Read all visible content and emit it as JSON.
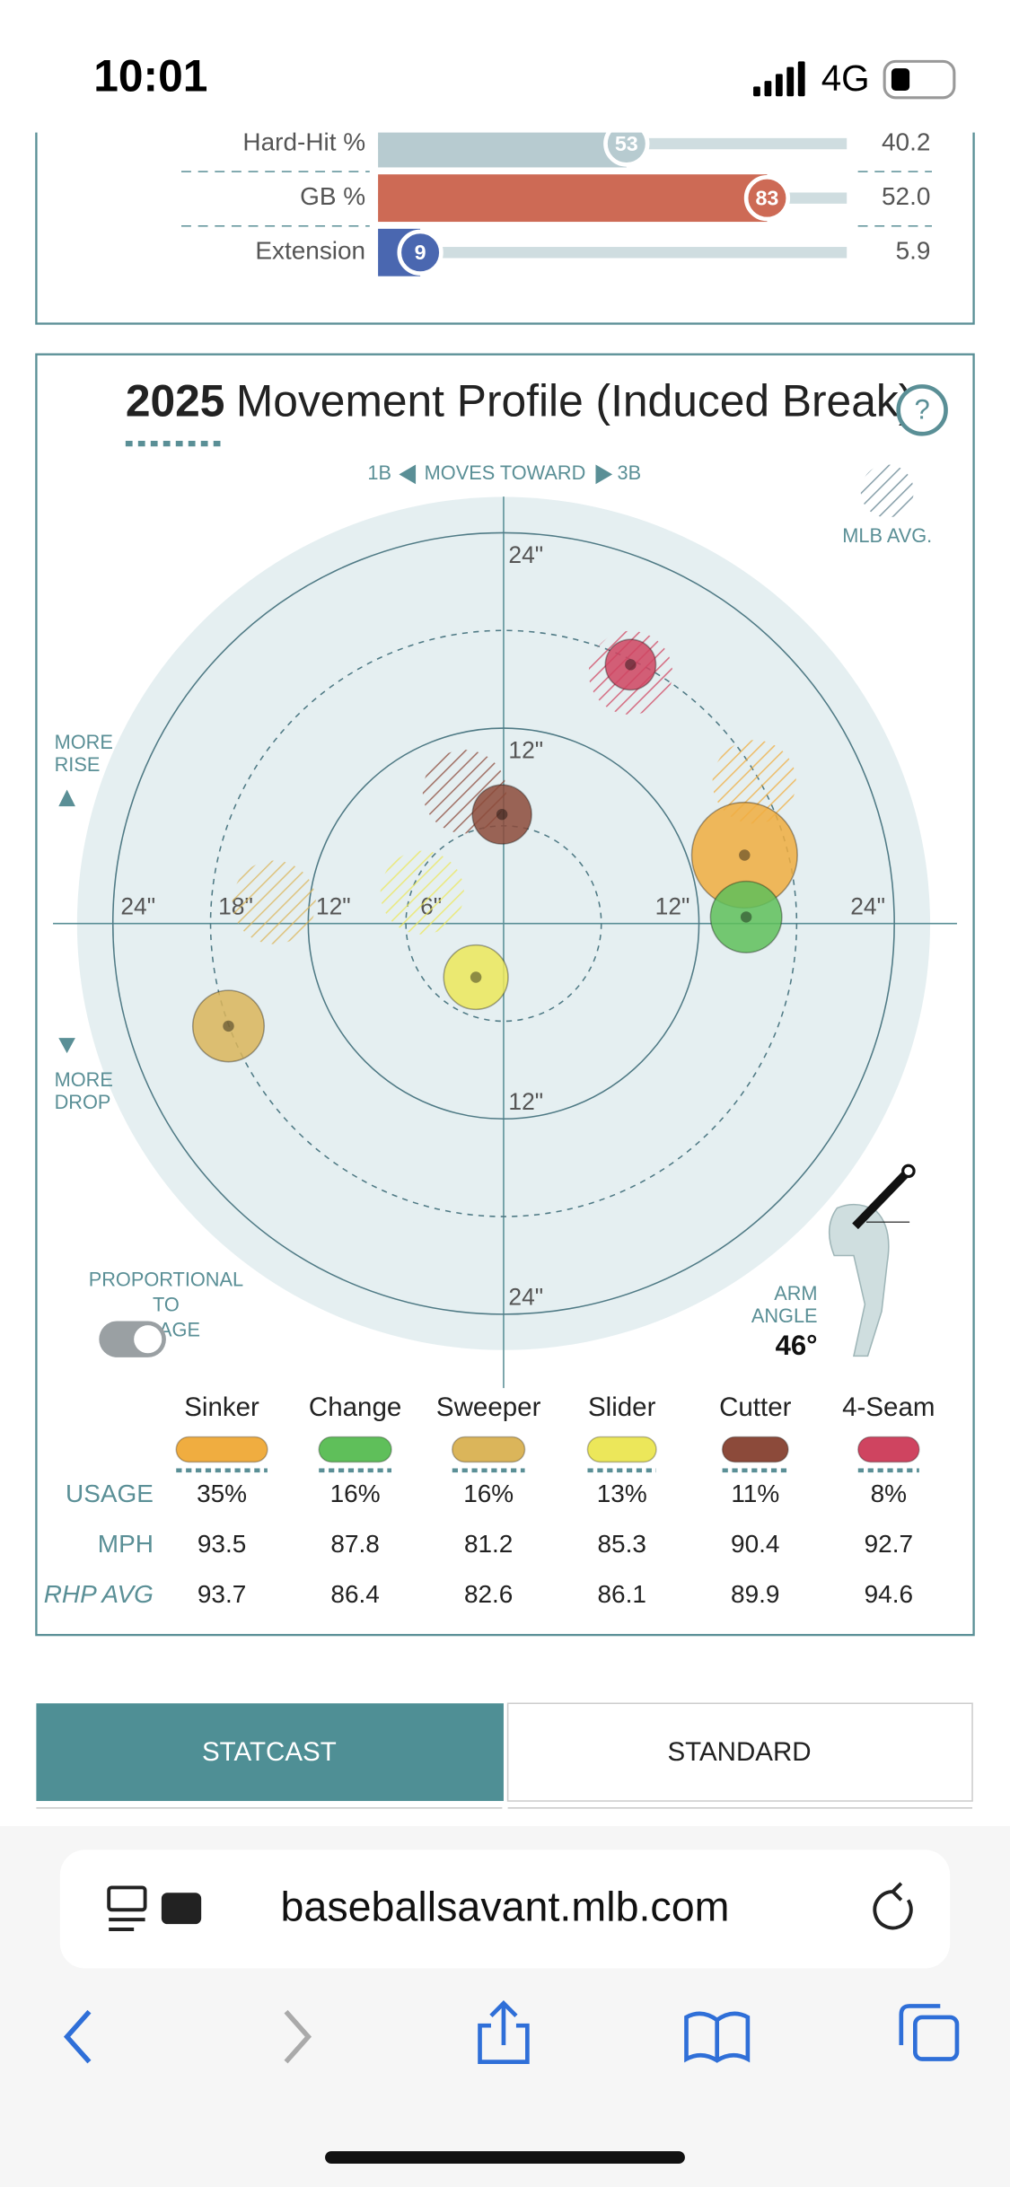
{
  "status_bar": {
    "time": "10:01",
    "network": "4G"
  },
  "stats": [
    {
      "label": "Hard-Hit %",
      "percentile": 53,
      "value": "40.2",
      "color": "#b7cbd0"
    },
    {
      "label": "GB %",
      "percentile": 83,
      "value": "52.0",
      "color": "#cd6a55"
    },
    {
      "label": "Extension",
      "percentile": 9,
      "value": "5.9",
      "color": "#4a67b0"
    }
  ],
  "movement": {
    "year": "2025",
    "title": "Movement Profile (Induced Break)",
    "help": "?",
    "direction": {
      "left": "1B",
      "middle": "MOVES TOWARD",
      "right": "3B"
    },
    "mlb_avg_label": "MLB AVG.",
    "rise_label": "MORE RISE",
    "drop_label": "MORE DROP",
    "rings": [
      6,
      12,
      18,
      24
    ],
    "ring_labels": {
      "up": [
        {
          "value": 24,
          "label": "24\""
        },
        {
          "value": 12,
          "label": "12\""
        }
      ],
      "down": [
        {
          "value": 12,
          "label": "12\""
        },
        {
          "value": 24,
          "label": "24\""
        }
      ],
      "left": [
        {
          "value": 24,
          "label": "24\""
        },
        {
          "value": 18,
          "label": "18\""
        },
        {
          "value": 12,
          "label": "12\""
        },
        {
          "value": 6,
          "label": "6\""
        }
      ],
      "right": [
        {
          "value": 12,
          "label": "12\""
        },
        {
          "value": 24,
          "label": "24\""
        }
      ]
    },
    "toggle_label": "PROPORTIONAL TO USAGE",
    "arm_angle_label": "ARM ANGLE",
    "arm_angle": {
      "value": 46,
      "label": "46°"
    },
    "pitches": [
      {
        "name": "Sinker",
        "color": "#f0ad40",
        "x": 14.8,
        "y": 4.2,
        "avg_x": 15.4,
        "avg_y": 8.7
      },
      {
        "name": "Change",
        "color": "#5fbf5a",
        "x": 14.9,
        "y": 0.4,
        "avg_x": null,
        "avg_y": null
      },
      {
        "name": "Sweeper",
        "color": "#dbb55a",
        "x": -16.9,
        "y": -6.3,
        "avg_x": -14.1,
        "avg_y": 1.3
      },
      {
        "name": "Slider",
        "color": "#ece75a",
        "x": -1.7,
        "y": -3.3,
        "avg_x": -5.0,
        "avg_y": 1.9
      },
      {
        "name": "Cutter",
        "color": "#8c4a3a",
        "x": -0.1,
        "y": 6.7,
        "avg_x": -2.4,
        "avg_y": 8.1
      },
      {
        "name": "4-Seam",
        "color": "#cf4460",
        "x": 7.8,
        "y": 15.9,
        "avg_x": 7.8,
        "avg_y": 15.4
      }
    ],
    "table": {
      "row_labels": [
        "USAGE",
        "MPH",
        "RHP AVG"
      ],
      "usage": [
        35,
        16,
        16,
        13,
        11,
        8
      ],
      "usage_labels": [
        "35%",
        "16%",
        "16%",
        "13%",
        "11%",
        "8%"
      ],
      "mph": [
        93.5,
        87.8,
        81.2,
        85.3,
        90.4,
        92.7
      ],
      "rhp_avg": [
        93.7,
        86.4,
        82.6,
        86.1,
        89.9,
        94.6
      ]
    }
  },
  "tabs": [
    "STATCAST",
    "STANDARD"
  ],
  "browser": {
    "url": "baseballsavant.mlb.com"
  }
}
